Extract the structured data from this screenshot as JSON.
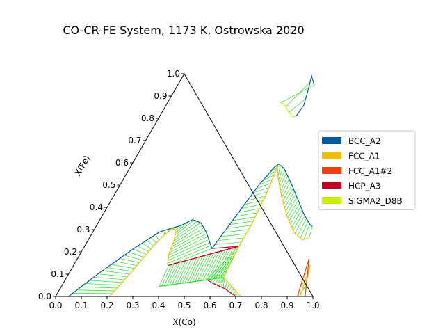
{
  "chart_data": {
    "type": "ternary",
    "title": "CO-CR-FE System, 1173 K, Ostrowska 2020",
    "xlabel": "X(Co)",
    "ylabel": "X(Fe)",
    "xlim": [
      0,
      1
    ],
    "ylim": [
      0,
      1
    ],
    "x_ticks": [
      "0.0",
      "0.1",
      "0.2",
      "0.3",
      "0.4",
      "0.5",
      "0.6",
      "0.7",
      "0.8",
      "0.9",
      "1.0"
    ],
    "y_ticks": [
      "0.0",
      "0.1",
      "0.2",
      "0.3",
      "0.4",
      "0.5",
      "0.6",
      "0.7",
      "0.8",
      "0.9",
      "1.0"
    ],
    "legend_position": "right",
    "legend": [
      {
        "name": "BCC_A2",
        "color": "#005a9c"
      },
      {
        "name": "FCC_A1",
        "color": "#f0c000"
      },
      {
        "name": "FCC_A1#2",
        "color": "#f04010"
      },
      {
        "name": "HCP_A3",
        "color": "#c00020"
      },
      {
        "name": "SIGMA2_D8B",
        "color": "#ccee00"
      }
    ],
    "tieline_color": "#22dd22",
    "regions": [
      {
        "id": "top-lens",
        "a": [
          [
            0.53,
            0.95
          ],
          [
            0.5,
            0.99
          ],
          [
            0.52,
            0.92
          ],
          [
            0.535,
            0.86
          ],
          [
            0.53,
            0.81
          ]
        ],
        "b": [
          [
            0.44,
            0.87
          ],
          [
            0.46,
            0.86
          ],
          [
            0.49,
            0.83
          ],
          [
            0.51,
            0.815
          ],
          [
            0.52,
            0.805
          ]
        ],
        "a_color": "#005a9c",
        "b_color": "#ccee00",
        "n_tie": 4
      },
      {
        "id": "left-dome",
        "a": [
          [
            0.05,
            0.0
          ],
          [
            0.12,
            0.11
          ],
          [
            0.2,
            0.22
          ],
          [
            0.26,
            0.29
          ],
          [
            0.33,
            0.32
          ],
          [
            0.36,
            0.345
          ],
          [
            0.4,
            0.33
          ],
          [
            0.44,
            0.29
          ],
          [
            0.48,
            0.24
          ],
          [
            0.5,
            0.215
          ]
        ],
        "b": [
          [
            0.21,
            0.0
          ],
          [
            0.24,
            0.11
          ],
          [
            0.265,
            0.22
          ],
          [
            0.285,
            0.28
          ],
          [
            0.3,
            0.305
          ],
          [
            0.32,
            0.295
          ],
          [
            0.335,
            0.25
          ],
          [
            0.345,
            0.19
          ],
          [
            0.36,
            0.15
          ],
          [
            0.37,
            0.14
          ]
        ],
        "a_color": "#005a9c",
        "b_color": "#f0c000",
        "n_tie": 40
      },
      {
        "id": "center-peak",
        "a": [
          [
            0.5,
            0.215
          ],
          [
            0.52,
            0.36
          ],
          [
            0.54,
            0.5
          ],
          [
            0.56,
            0.58
          ],
          [
            0.57,
            0.595
          ],
          [
            0.6,
            0.575
          ],
          [
            0.66,
            0.51
          ],
          [
            0.72,
            0.44
          ],
          [
            0.78,
            0.37
          ],
          [
            0.83,
            0.32
          ],
          [
            0.84,
            0.315
          ]
        ],
        "b": [
          [
            0.6,
            0.225
          ],
          [
            0.6,
            0.32
          ],
          [
            0.59,
            0.45
          ],
          [
            0.575,
            0.56
          ],
          [
            0.57,
            0.585
          ],
          [
            0.6,
            0.53
          ],
          [
            0.66,
            0.44
          ],
          [
            0.72,
            0.36
          ],
          [
            0.78,
            0.29
          ],
          [
            0.83,
            0.255
          ],
          [
            0.855,
            0.26
          ]
        ],
        "a_color": "#005a9c",
        "b_color": "#f0c000",
        "n_tie": 44
      },
      {
        "id": "three-phase-upper",
        "a": [
          [
            0.5,
            0.215
          ],
          [
            0.6,
            0.225
          ]
        ],
        "b": [
          [
            0.37,
            0.14
          ],
          [
            0.6,
            0.225
          ]
        ],
        "a_color": "#c00020",
        "b_color": "#c00020",
        "n_tie": 0
      },
      {
        "id": "lower-band",
        "a": [
          [
            0.37,
            0.14
          ],
          [
            0.6,
            0.225
          ]
        ],
        "b": [
          [
            0.38,
            0.045
          ],
          [
            0.61,
            0.085
          ]
        ],
        "a_color": "#c00020",
        "b_color": "#22dd22",
        "n_tie": 26
      },
      {
        "id": "lower-right-wedge",
        "a": [
          [
            0.6,
            0.225
          ],
          [
            0.61,
            0.085
          ],
          [
            0.7,
            0.015
          ],
          [
            0.72,
            0.0
          ]
        ],
        "b": [
          [
            0.55,
            0.075
          ],
          [
            0.58,
            0.06
          ],
          [
            0.64,
            0.035
          ],
          [
            0.7,
            0.0
          ]
        ],
        "a_color": "#f0c000",
        "b_color": "#c00020",
        "n_tie": 16
      },
      {
        "id": "right-edge-sliver",
        "a": [
          [
            0.95,
            0.04
          ],
          [
            0.92,
            0.14
          ],
          [
            0.95,
            0.0
          ]
        ],
        "b": [
          [
            0.94,
            0.0
          ],
          [
            0.9,
            0.17
          ],
          [
            0.97,
            0.0
          ]
        ],
        "a_color": "#f0c000",
        "b_color": "#f04010",
        "n_tie": 8
      }
    ]
  }
}
